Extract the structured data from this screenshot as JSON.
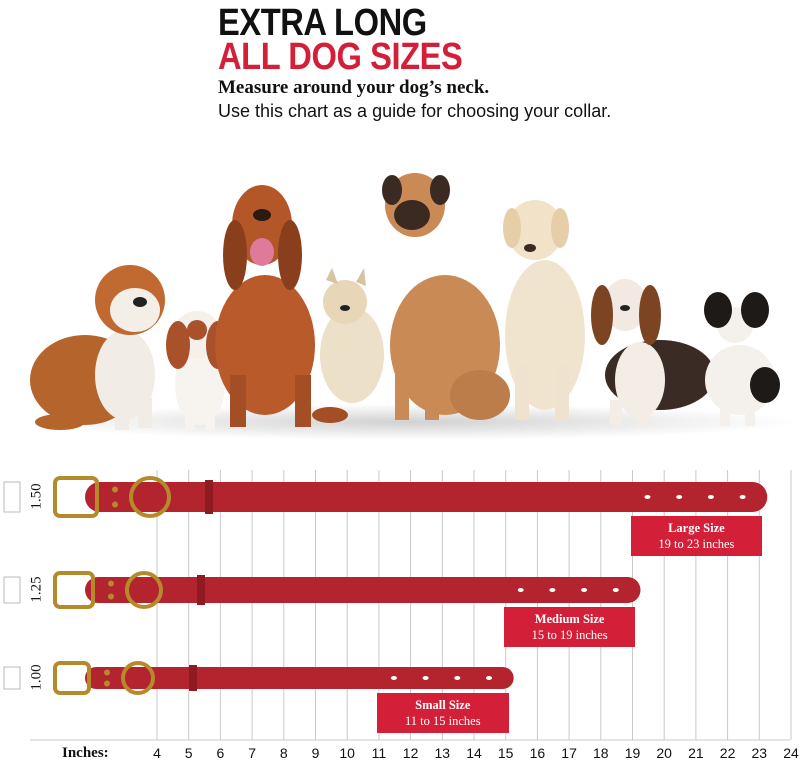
{
  "header": {
    "line1": "EXTRA LONG",
    "line2": "ALL DOG SIZES",
    "sub1": "Measure around your dog’s neck.",
    "sub2": "Use this chart as a guide for choosing your collar."
  },
  "colors": {
    "accent": "#d41f38",
    "collar": "#b3242f",
    "collar_dark": "#8e1a22",
    "brass": "#b58a2b"
  },
  "chart_data": {
    "type": "bar",
    "x_axis_title": "Inches:",
    "x_ticks": [
      4,
      5,
      6,
      7,
      8,
      9,
      10,
      11,
      12,
      13,
      14,
      15,
      16,
      17,
      18,
      19,
      20,
      21,
      22,
      23,
      24
    ],
    "series": [
      {
        "width_label": "1.50",
        "title": "Large Size",
        "range": "19 to 23 inches",
        "min": 19,
        "max": 23
      },
      {
        "width_label": "1.25",
        "title": "Medium Size",
        "range": "15 to 19 inches",
        "min": 15,
        "max": 19
      },
      {
        "width_label": "1.00",
        "title": "Small Size",
        "range": "11 to 15 inches",
        "min": 11,
        "max": 15
      }
    ]
  },
  "dogs": [
    {
      "name": "bulldog"
    },
    {
      "name": "cavalier"
    },
    {
      "name": "bloodhound"
    },
    {
      "name": "yorkie"
    },
    {
      "name": "mastiff"
    },
    {
      "name": "labrador"
    },
    {
      "name": "basset"
    },
    {
      "name": "papillon"
    }
  ]
}
